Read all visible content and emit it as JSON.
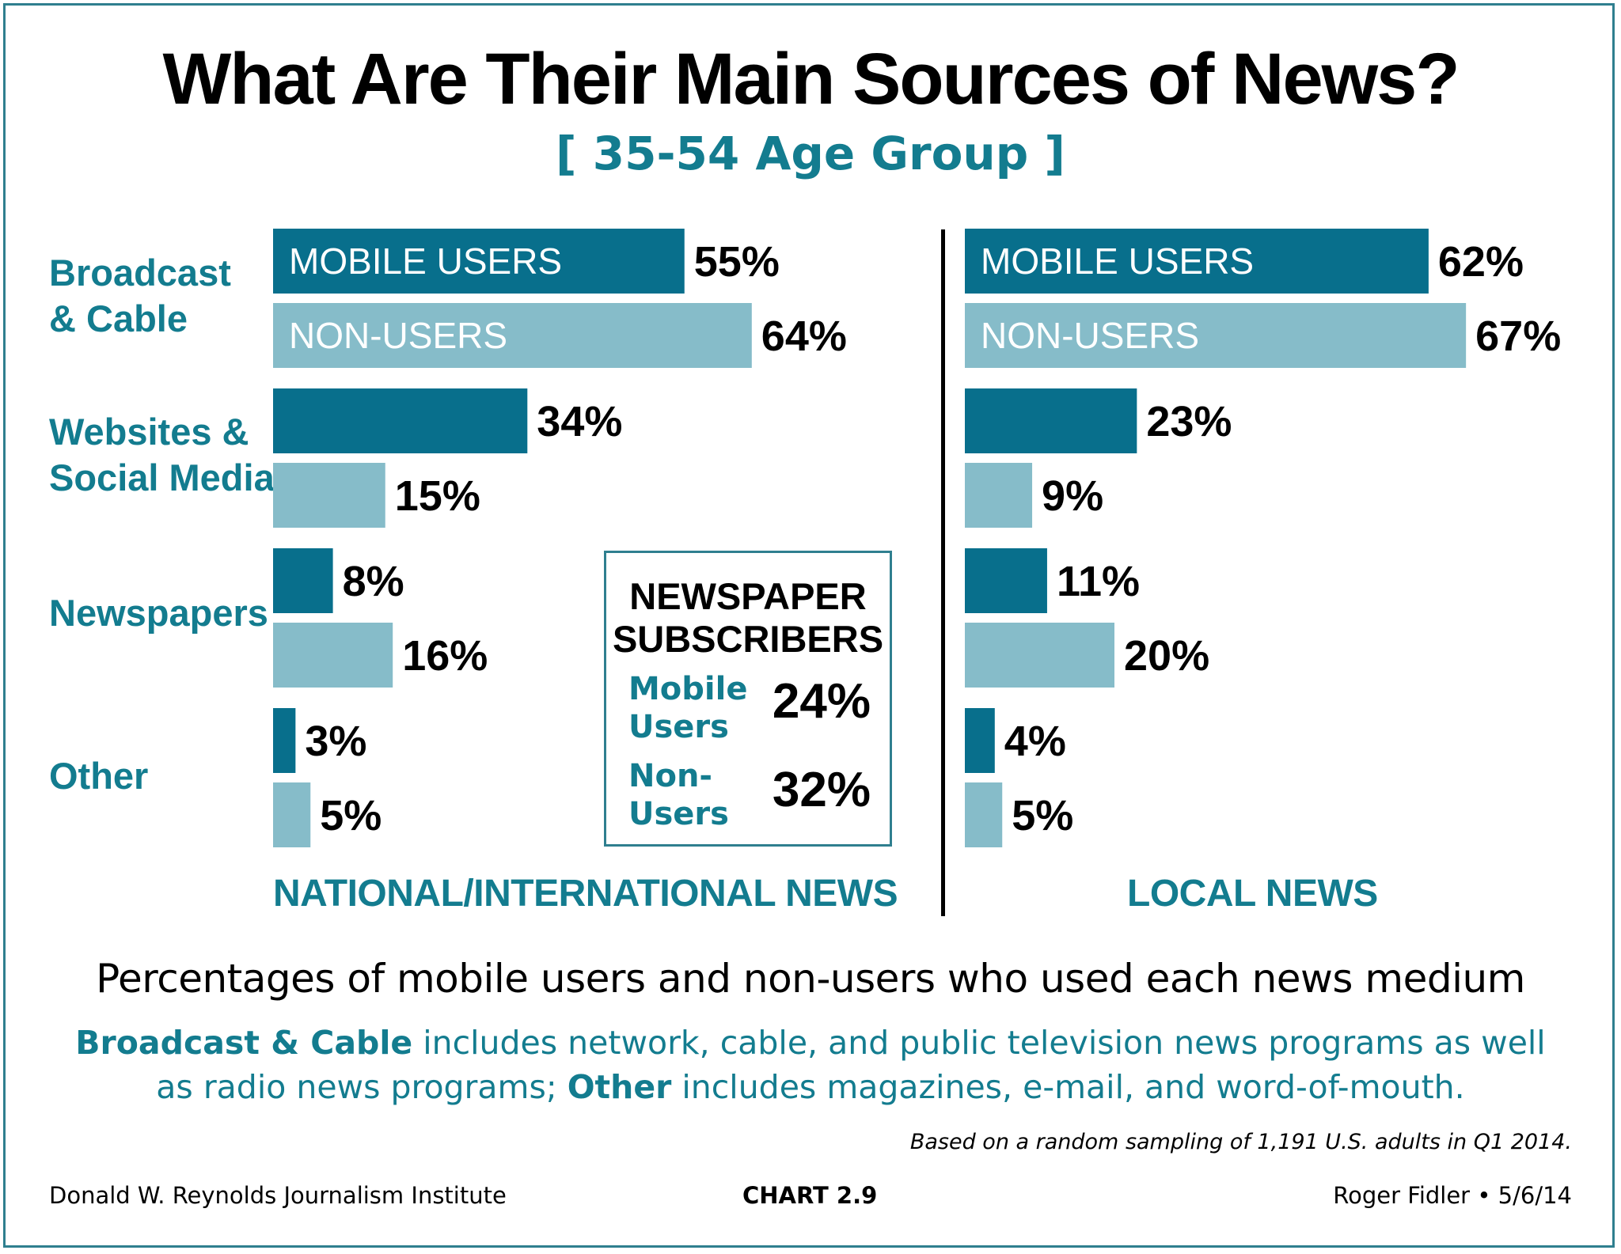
{
  "header": {
    "title": "What Are Their Main Sources of News?",
    "subtitle": "[ 35-54 Age Group ]"
  },
  "colors": {
    "mobile_users": "#086f8c",
    "non_users": "#86bcc9",
    "accent_text": "#137c8f"
  },
  "chart_data": {
    "type": "bar",
    "orientation": "horizontal",
    "categories": [
      "Broadcast\n& Cable",
      "Websites &\nSocial Media",
      "Newspapers",
      "Other"
    ],
    "unit": "%",
    "panels": [
      {
        "name": "NATIONAL/INTERNATIONAL NEWS",
        "series": [
          {
            "name": "MOBILE USERS",
            "values": [
              55,
              34,
              8,
              3
            ]
          },
          {
            "name": "NON-USERS",
            "values": [
              64,
              15,
              16,
              5
            ]
          }
        ]
      },
      {
        "name": "LOCAL NEWS",
        "series": [
          {
            "name": "MOBILE USERS",
            "values": [
              62,
              23,
              11,
              4
            ]
          },
          {
            "name": "NON-USERS",
            "values": [
              67,
              9,
              20,
              5
            ]
          }
        ]
      }
    ],
    "legend": "in-bar labels on first category"
  },
  "callout": {
    "title": "NEWSPAPER\nSUBSCRIBERS",
    "rows": [
      {
        "label": "Mobile\nUsers",
        "value": "24%"
      },
      {
        "label": "Non-\nUsers",
        "value": "32%"
      }
    ]
  },
  "caption": "Percentages of mobile users and non-users who used each news medium",
  "note": {
    "term1": "Broadcast & Cable",
    "text1": " includes network, cable, and public television news programs as well as radio news programs;  ",
    "term2": "Other",
    "text2": " includes magazines, e-mail, and word-of-mouth."
  },
  "source": "Based on a random sampling of 1,191 U.S. adults in Q1 2014.",
  "footer": {
    "left": "Donald W. Reynolds Journalism Institute",
    "center": "CHART 2.9",
    "right": "Roger Fidler • 5/6/14"
  }
}
